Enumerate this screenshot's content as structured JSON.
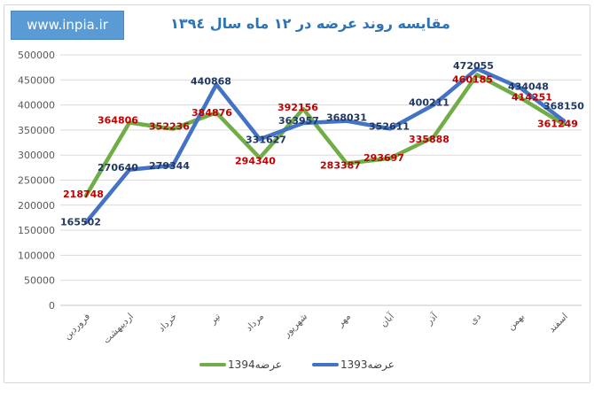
{
  "watermark": {
    "text": "www.inpia.ir"
  },
  "colors": {
    "series_1394": "#70AD47",
    "series_1393": "#4472C4",
    "label_1394": "#C00000",
    "label_1393": "#1F3864",
    "title": "#2E74B5",
    "watermark_bg": "#5B9BD5",
    "gridline": "#D9D9D9",
    "axis_text": "#595959"
  },
  "chart_data": {
    "type": "line",
    "title": "مقایسه روند عرضه در ۱۲ ماه سال ۱۳۹٤",
    "categories": [
      "فروردین",
      "اردیبهشت",
      "خرداد",
      "تیر",
      "مرداد",
      "شهریور",
      "مهر",
      "آبان",
      "آذر",
      "دی",
      "بهمن",
      "اسفند"
    ],
    "series": [
      {
        "name": "عرضه1394",
        "color": "#70AD47",
        "label_color": "#C00000",
        "values": [
          218748,
          364806,
          352236,
          384876,
          294340,
          392156,
          283387,
          293697,
          335888,
          460185,
          414251,
          361249
        ],
        "label_offsets": [
          [
            -3,
            2
          ],
          [
            -13,
            1
          ],
          [
            -4,
            1
          ],
          [
            -5,
            4
          ],
          [
            -5,
            7
          ],
          [
            -6,
            2
          ],
          [
            -7,
            6
          ],
          [
            -7,
            3
          ],
          [
            -5,
            6
          ],
          [
            -5,
            9
          ],
          [
            13,
            3
          ],
          [
            -7,
            3
          ]
        ]
      },
      {
        "name": "عرضه1393",
        "color": "#4472C4",
        "label_color": "#1F3864",
        "values": [
          165502,
          270640,
          279344,
          440868,
          331627,
          363957,
          368031,
          352611,
          400211,
          472055,
          434048,
          368150
        ],
        "label_offsets": [
          [
            -6,
            3
          ],
          [
            -13,
            1
          ],
          [
            -4,
            4
          ],
          [
            -6,
            0
          ],
          [
            7,
            4
          ],
          [
            -5,
            1
          ],
          [
            0,
            0
          ],
          [
            -1,
            1
          ],
          [
            -5,
            1
          ],
          [
            -4,
            0
          ],
          [
            9,
            2
          ],
          [
            0,
            -13
          ]
        ]
      }
    ],
    "ylim": [
      0,
      500000
    ],
    "ytick_step": 50000,
    "xlabel": "",
    "ylabel": "",
    "grid": true,
    "legend_position": "bottom"
  }
}
